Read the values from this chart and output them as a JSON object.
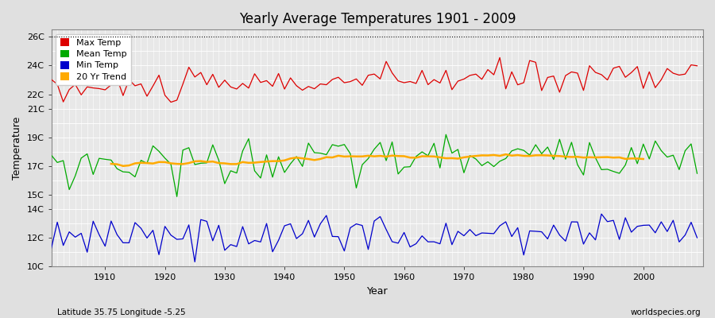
{
  "title": "Yearly Average Temperatures 1901 - 2009",
  "xlabel": "Year",
  "ylabel": "Temperature",
  "bottom_left": "Latitude 35.75 Longitude -5.25",
  "bottom_right": "worldspecies.org",
  "year_start": 1901,
  "year_end": 2009,
  "ylim_min": 10,
  "ylim_max": 26.5,
  "yticks": [
    10,
    12,
    14,
    15,
    17,
    19,
    21,
    22,
    24,
    26
  ],
  "ytick_labels": [
    "10C",
    "12C",
    "14C",
    "15C",
    "17C",
    "19C",
    "21C",
    "22C",
    "24C",
    "26C"
  ],
  "bg_color": "#e0e0e0",
  "plot_bg_color": "#e8e8e8",
  "grid_color": "#ffffff",
  "max_temp_color": "#dd0000",
  "mean_temp_color": "#00aa00",
  "min_temp_color": "#0000cc",
  "trend_color": "#ffaa00",
  "legend_labels": [
    "Max Temp",
    "Mean Temp",
    "Min Temp",
    "20 Yr Trend"
  ],
  "max_base": 22.3,
  "mean_base": 17.1,
  "min_base": 12.1,
  "max_trend_slope": 0.012,
  "mean_trend_slope": 0.008,
  "min_trend_slope": 0.005,
  "max_amplitude": 0.55,
  "mean_amplitude": 0.75,
  "min_amplitude": 0.65,
  "trend_window": 20,
  "linewidth": 0.9,
  "trend_linewidth": 1.8
}
